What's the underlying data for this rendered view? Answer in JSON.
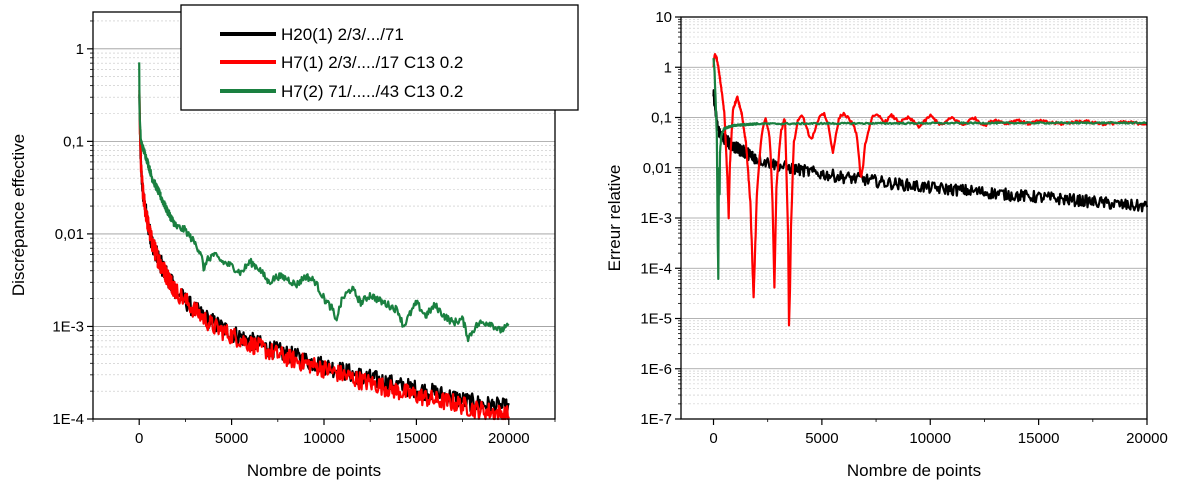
{
  "chart_data": [
    {
      "type": "line",
      "xlabel": "Nombre de points",
      "ylabel": "Discrépance effective",
      "xlim": [
        -2500,
        22500
      ],
      "ylim": [
        0.0001,
        2.5
      ],
      "yscale": "log",
      "grid": {
        "y_major": true,
        "y_minor": true,
        "x": false
      },
      "legend": {
        "position": "top-right"
      },
      "xticks": [
        0,
        5000,
        10000,
        15000,
        20000
      ],
      "xtick_labels": [
        "0",
        "5000",
        "10000",
        "15000",
        "20000"
      ],
      "yticks": [
        0.0001,
        0.001,
        0.01,
        0.1,
        1
      ],
      "ytick_labels": [
        "1E-4",
        "1E-3",
        "0,01",
        "0,1",
        "1"
      ],
      "series": [
        {
          "name": "H20(1) 2/3/.../71",
          "color": "#000000",
          "x": [
            10,
            50,
            100,
            200,
            300,
            500,
            700,
            1000,
            1500,
            2000,
            3000,
            4000,
            5000,
            6000,
            7000,
            8000,
            9000,
            10000,
            11000,
            12000,
            13000,
            14000,
            15000,
            16000,
            17000,
            18000,
            19000,
            20000
          ],
          "y": [
            0.3,
            0.1,
            0.05,
            0.028,
            0.02,
            0.012,
            0.008,
            0.0055,
            0.0035,
            0.0024,
            0.0015,
            0.0011,
            0.00085,
            0.0007,
            0.00058,
            0.0005,
            0.00043,
            0.00038,
            0.00033,
            0.00029,
            0.00026,
            0.00023,
            0.00021,
            0.00019,
            0.00017,
            0.00015,
            0.00014,
            0.00013
          ],
          "noise": 0.1
        },
        {
          "name": "H7(1) 2/3/..../17 C13 0.2",
          "color": "#ff0000",
          "x": [
            10,
            50,
            100,
            200,
            300,
            500,
            700,
            1000,
            1500,
            2000,
            3000,
            4000,
            5000,
            6000,
            7000,
            8000,
            9000,
            10000,
            11000,
            12000,
            13000,
            14000,
            15000,
            16000,
            17000,
            18000,
            19000,
            20000
          ],
          "y": [
            0.3,
            0.1,
            0.05,
            0.028,
            0.02,
            0.012,
            0.008,
            0.0055,
            0.0035,
            0.0024,
            0.0015,
            0.001,
            0.0008,
            0.00065,
            0.00054,
            0.00046,
            0.0004,
            0.00035,
            0.0003,
            0.00026,
            0.00023,
            0.0002,
            0.00018,
            0.00016,
            0.00015,
            0.00013,
            0.00012,
            0.00011
          ],
          "noise": 0.1
        },
        {
          "name": "H7(2) 71/...../43 C13 0.2",
          "color": "#1a8040",
          "x": [
            0,
            20,
            60,
            100,
            200,
            400,
            700,
            1000,
            1500,
            2000,
            2500,
            3000,
            3400,
            3500,
            3600,
            4000,
            4500,
            5000,
            5500,
            6000,
            6500,
            7000,
            7500,
            8000,
            8500,
            9000,
            9500,
            10000,
            10500,
            10600,
            11000,
            11500,
            12000,
            12500,
            13000,
            13500,
            14000,
            14300,
            14600,
            15000,
            15500,
            16000,
            16500,
            17000,
            17500,
            17800,
            18200,
            18500,
            19000,
            19500,
            20000
          ],
          "y": [
            0.7,
            0.2,
            0.13,
            0.1,
            0.085,
            0.065,
            0.04,
            0.03,
            0.018,
            0.012,
            0.011,
            0.008,
            0.006,
            0.0035,
            0.005,
            0.006,
            0.005,
            0.0045,
            0.0038,
            0.005,
            0.0042,
            0.003,
            0.0035,
            0.0033,
            0.0028,
            0.0035,
            0.0031,
            0.002,
            0.0015,
            0.0011,
            0.002,
            0.0026,
            0.0018,
            0.0022,
            0.0019,
            0.0017,
            0.0015,
            0.001,
            0.0013,
            0.0018,
            0.0013,
            0.0017,
            0.0013,
            0.0011,
            0.0012,
            0.00075,
            0.001,
            0.0011,
            0.0011,
            0.0009,
            0.001
          ],
          "noise": 0.04
        }
      ]
    },
    {
      "type": "line",
      "xlabel": "Nombre de points",
      "ylabel": "Erreur relative",
      "xlim": [
        -1500,
        20000
      ],
      "ylim": [
        1e-07,
        10
      ],
      "yscale": "log",
      "grid": {
        "y_major": true,
        "y_minor": true,
        "x": false
      },
      "xticks": [
        0,
        5000,
        10000,
        15000,
        20000
      ],
      "xtick_labels": [
        "0",
        "5000",
        "10000",
        "15000",
        "20000"
      ],
      "yticks": [
        1e-07,
        1e-06,
        1e-05,
        0.0001,
        0.001,
        0.01,
        0.1,
        1,
        10
      ],
      "ytick_labels": [
        "1E-7",
        "1E-6",
        "1E-5",
        "1E-4",
        "1E-3",
        "0,01",
        "0,1",
        "1",
        "10"
      ],
      "series": [
        {
          "name": "H20(1) 2/3/.../71",
          "color": "#000000",
          "x": [
            0,
            50,
            100,
            200,
            400,
            700,
            1000,
            1500,
            2000,
            3000,
            4000,
            5000,
            6000,
            7000,
            8000,
            9000,
            10000,
            11000,
            12000,
            13000,
            14000,
            15000,
            16000,
            17000,
            18000,
            19000,
            20000
          ],
          "y": [
            0.3,
            0.2,
            0.12,
            0.06,
            0.04,
            0.032,
            0.025,
            0.02,
            0.015,
            0.011,
            0.009,
            0.0075,
            0.0065,
            0.0058,
            0.005,
            0.0045,
            0.004,
            0.0037,
            0.0034,
            0.0031,
            0.0028,
            0.0026,
            0.0024,
            0.0022,
            0.002,
            0.0018,
            0.0017
          ],
          "noise": 0.12
        },
        {
          "name": "H7(1) 2/3/..../17 C13 0.2",
          "color": "#ff0000",
          "x": [
            0,
            50,
            150,
            300,
            500,
            650,
            700,
            750,
            900,
            1100,
            1300,
            1500,
            1700,
            1850,
            2000,
            2200,
            2400,
            2600,
            2750,
            2800,
            2900,
            3100,
            3300,
            3450,
            3500,
            3550,
            3700,
            3900,
            4100,
            4300,
            4500,
            4700,
            4900,
            5100,
            5300,
            5500,
            5800,
            6000,
            6300,
            6600,
            6800,
            6900,
            7000,
            7300,
            7600,
            7900,
            8200,
            8600,
            9000,
            9500,
            10000,
            10500,
            11000,
            11500,
            12000,
            12500,
            13000,
            13500,
            14000,
            14500,
            15000,
            16000,
            17000,
            18000,
            19000,
            20000
          ],
          "y": [
            1,
            1.8,
            1.5,
            0.6,
            0.12,
            0.005,
            0.001,
            0.01,
            0.15,
            0.25,
            0.12,
            0.03,
            0.002,
            2.5e-05,
            0.003,
            0.04,
            0.1,
            0.04,
            0.001,
            2.5e-05,
            0.004,
            0.05,
            0.1,
            0.0003,
            1.5e-06,
            0.0003,
            0.03,
            0.09,
            0.11,
            0.06,
            0.035,
            0.06,
            0.11,
            0.12,
            0.07,
            0.02,
            0.1,
            0.12,
            0.09,
            0.05,
            0.006,
            0.01,
            0.03,
            0.1,
            0.11,
            0.08,
            0.11,
            0.08,
            0.1,
            0.065,
            0.11,
            0.07,
            0.1,
            0.07,
            0.1,
            0.07,
            0.09,
            0.075,
            0.09,
            0.075,
            0.085,
            0.075,
            0.085,
            0.075,
            0.08,
            0.075
          ],
          "noise": 0.03
        },
        {
          "name": "H7(2) 71/...../43 C13 0.2",
          "color": "#1a8040",
          "x": [
            0,
            50,
            100,
            150,
            200,
            220,
            250,
            280,
            300,
            350,
            400,
            500,
            700,
            1000,
            1500,
            2000,
            3000,
            5000,
            10000,
            15000,
            20000
          ],
          "y": [
            1.5,
            0.8,
            0.2,
            0.05,
            0.0003,
            6e-05,
            0.01,
            0.003,
            0.02,
            0.04,
            0.05,
            0.06,
            0.065,
            0.07,
            0.072,
            0.075,
            0.075,
            0.076,
            0.077,
            0.078,
            0.078
          ],
          "noise": 0.015
        }
      ]
    }
  ]
}
